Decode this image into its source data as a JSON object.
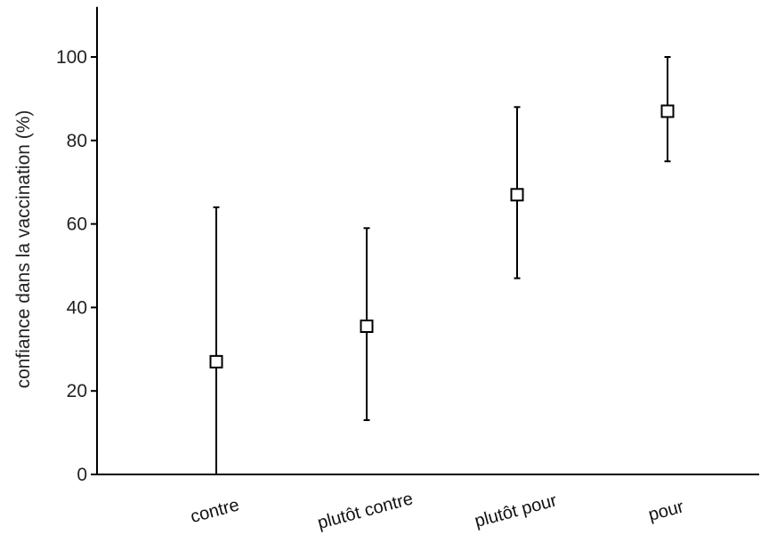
{
  "chart_data": {
    "type": "scatter",
    "subtype": "point-with-error-bars",
    "title": "",
    "xlabel": "",
    "ylabel": "confiance dans la vaccination (%)",
    "ylim": [
      0,
      112
    ],
    "yticks": [
      "0",
      "20",
      "40",
      "60",
      "80",
      "100"
    ],
    "grid": false,
    "categories": [
      "contre",
      "plutôt contre",
      "plutôt pour",
      "pour"
    ],
    "values": [
      27,
      35.5,
      67,
      87
    ],
    "error_low": [
      0,
      13,
      47,
      75
    ],
    "error_high": [
      64,
      59,
      88,
      100
    ],
    "marker": "open-square",
    "colors": {
      "line": "#000000",
      "marker_fill": "#ffffff",
      "axis": "#000000"
    }
  }
}
